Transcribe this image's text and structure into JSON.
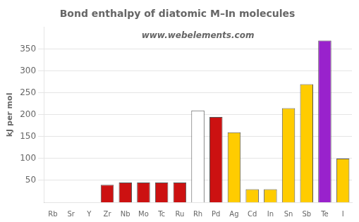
{
  "chart_data": {
    "type": "bar",
    "title": "Bond enthalpy of diatomic M–In molecules",
    "ylabel": "kJ per mol",
    "annotation": "www.webelements.com",
    "categories": [
      "Rb",
      "Sr",
      "Y",
      "Zr",
      "Nb",
      "Mo",
      "Tc",
      "Ru",
      "Rh",
      "Pd",
      "Ag",
      "Cd",
      "In",
      "Sn",
      "Sb",
      "Te",
      "I"
    ],
    "values": [
      0,
      0,
      0,
      40,
      45,
      45,
      45,
      45,
      210,
      195,
      160,
      30,
      30,
      215,
      270,
      370,
      100
    ],
    "colors": [
      "#dddddd",
      "#dddddd",
      "#dddddd",
      "#cc1111",
      "#cc1111",
      "#cc1111",
      "#cc1111",
      "#cc1111",
      "#ffffff",
      "#cc1111",
      "#ffcc00",
      "#ffcc00",
      "#ffcc00",
      "#ffcc00",
      "#ffcc00",
      "#9922cc",
      "#ffcc00"
    ],
    "ylim": [
      0,
      400
    ],
    "yticks": [
      50,
      100,
      150,
      200,
      250,
      300,
      350
    ],
    "grid": true
  }
}
